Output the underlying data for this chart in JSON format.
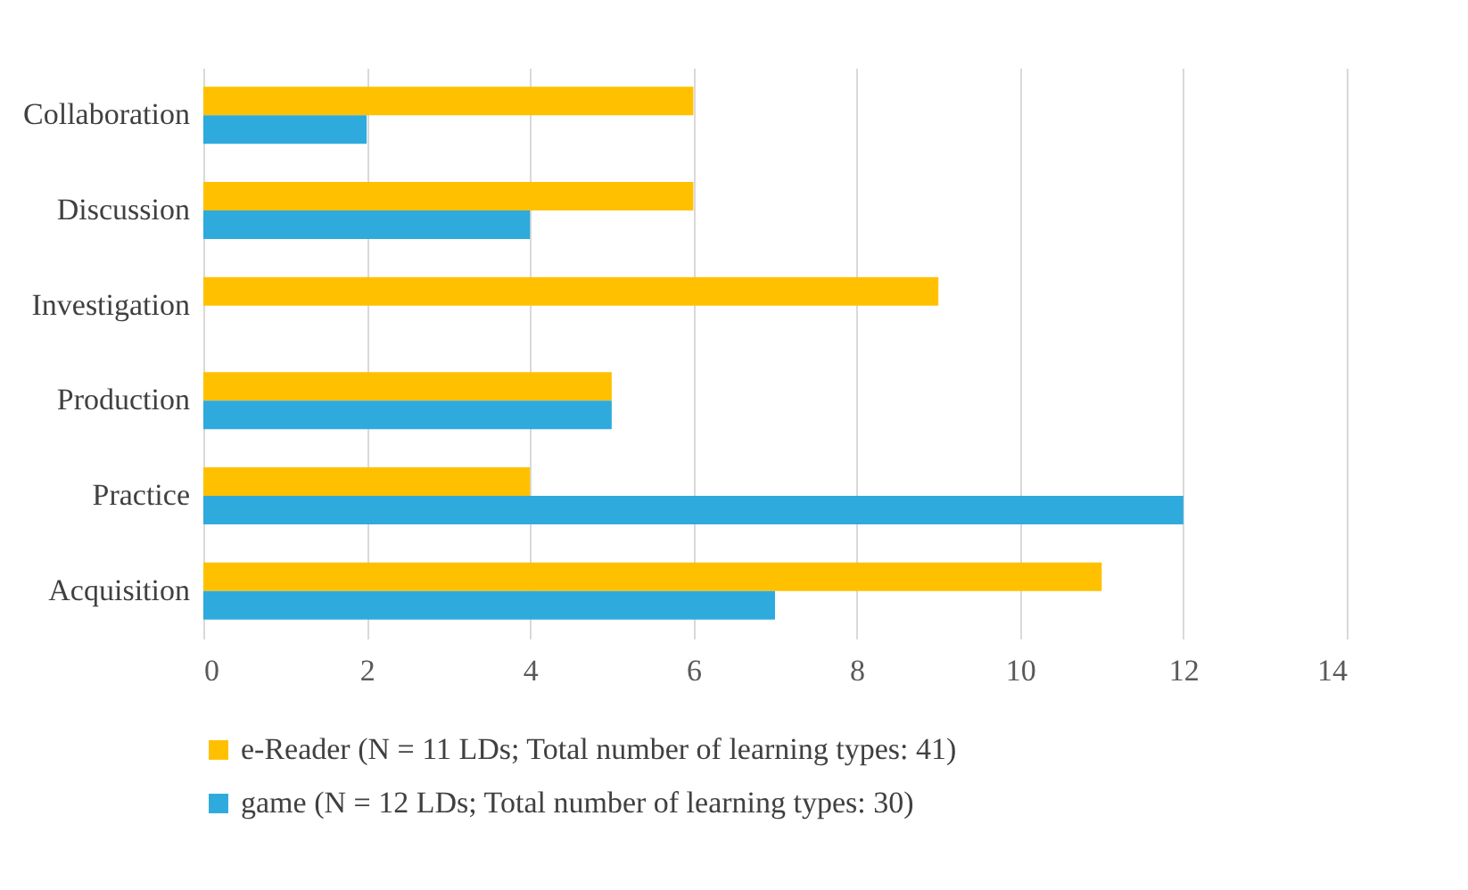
{
  "chart_data": {
    "type": "bar",
    "orientation": "horizontal",
    "categories": [
      "Collaboration",
      "Discussion",
      "Investigation",
      "Production",
      "Practice",
      "Acquisition"
    ],
    "series": [
      {
        "name": "e-Reader  (N = 11 LDs; Total number of learning types: 41)",
        "color": "#ffc000",
        "values": [
          6,
          6,
          9,
          5,
          4,
          11
        ]
      },
      {
        "name": "game  (N = 12 LDs; Total number of learning types: 30)",
        "color": "#2eaadc",
        "values": [
          2,
          4,
          0,
          5,
          12,
          7
        ]
      }
    ],
    "xlim": [
      0,
      14
    ],
    "xticks": [
      0,
      2,
      4,
      6,
      8,
      10,
      12,
      14
    ],
    "grid": "x",
    "legend": "bottom"
  }
}
